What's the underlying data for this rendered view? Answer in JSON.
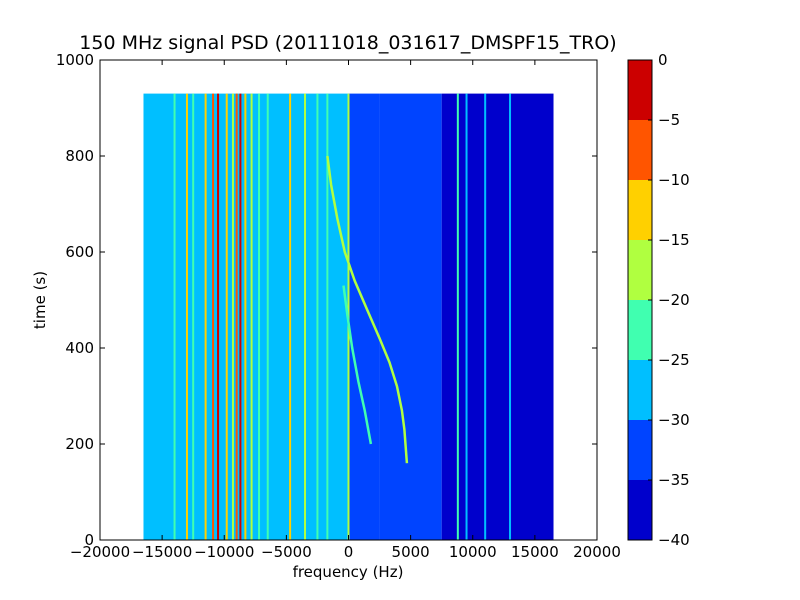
{
  "chart_data": {
    "type": "heatmap",
    "title": "150 MHz signal PSD (20111018_031617_DMSPF15_TRO)",
    "xlabel": "frequency (Hz)",
    "ylabel": "time (s)",
    "xlim": [
      -20000,
      20000
    ],
    "ylim": [
      0,
      1000
    ],
    "xticks": [
      -20000,
      -15000,
      -10000,
      -5000,
      0,
      5000,
      10000,
      15000,
      20000
    ],
    "xtick_labels": [
      "−20000",
      "−15000",
      "−10000",
      "−5000",
      "0",
      "5000",
      "10000",
      "15000",
      "20000"
    ],
    "yticks": [
      0,
      200,
      400,
      600,
      800,
      1000
    ],
    "ytick_labels": [
      "0",
      "200",
      "400",
      "600",
      "800",
      "1000"
    ],
    "data_extent": {
      "x": [
        -16500,
        16500
      ],
      "y": [
        0,
        930
      ]
    },
    "colorbar": {
      "levels": [
        -40,
        -35,
        -30,
        -25,
        -20,
        -15,
        -10,
        -5,
        0
      ],
      "tick_labels": [
        "−40",
        "−35",
        "−30",
        "−25",
        "−20",
        "−15",
        "−10",
        "−5",
        "0"
      ],
      "colors": [
        "#0000cc",
        "#0044ff",
        "#00bfff",
        "#40ffb0",
        "#b0ff40",
        "#ffd000",
        "#ff5500",
        "#cc0000"
      ]
    },
    "background_regions": [
      {
        "x": [
          -16500,
          0
        ],
        "level": -27.5
      },
      {
        "x": [
          0,
          2500
        ],
        "level": -30
      },
      {
        "x": [
          2500,
          7500
        ],
        "level": -32
      },
      {
        "x": [
          7500,
          16500
        ],
        "level": -35
      }
    ],
    "vertical_lines": [
      {
        "x": -14000,
        "level": -20
      },
      {
        "x": -13000,
        "level": -12.5
      },
      {
        "x": -12500,
        "level": -22.5
      },
      {
        "x": -11500,
        "level": -12.5
      },
      {
        "x": -10900,
        "level": -7.5
      },
      {
        "x": -10500,
        "level": -2.5
      },
      {
        "x": -9800,
        "level": -12.5
      },
      {
        "x": -9300,
        "level": -17.5
      },
      {
        "x": -9000,
        "level": -7.5
      },
      {
        "x": -8700,
        "level": -2.5
      },
      {
        "x": -8300,
        "level": -12.5
      },
      {
        "x": -7800,
        "level": -17.5
      },
      {
        "x": -7200,
        "level": -22.5
      },
      {
        "x": -6500,
        "level": -22.5
      },
      {
        "x": -4700,
        "level": -12.5
      },
      {
        "x": -3500,
        "level": -17.5
      },
      {
        "x": -2500,
        "level": -22.5
      },
      {
        "x": -1700,
        "level": -22.5
      },
      {
        "x": 0,
        "level": -17.5
      },
      {
        "x": 8800,
        "level": -22.5
      },
      {
        "x": 9500,
        "level": -27.5
      },
      {
        "x": 11000,
        "level": -27.5
      },
      {
        "x": 13000,
        "level": -27.5
      }
    ],
    "curves": [
      {
        "name": "",
        "level": -17.5,
        "points": [
          {
            "x": -1700,
            "y": 800
          },
          {
            "x": -1400,
            "y": 740
          },
          {
            "x": -900,
            "y": 670
          },
          {
            "x": -300,
            "y": 600
          },
          {
            "x": 500,
            "y": 540
          },
          {
            "x": 1500,
            "y": 480
          },
          {
            "x": 2500,
            "y": 420
          },
          {
            "x": 3300,
            "y": 370
          },
          {
            "x": 3900,
            "y": 320
          },
          {
            "x": 4300,
            "y": 270
          },
          {
            "x": 4500,
            "y": 230
          },
          {
            "x": 4700,
            "y": 160
          }
        ]
      },
      {
        "name": "",
        "level": -22.5,
        "points": [
          {
            "x": -400,
            "y": 530
          },
          {
            "x": -100,
            "y": 470
          },
          {
            "x": 300,
            "y": 400
          },
          {
            "x": 800,
            "y": 330
          },
          {
            "x": 1300,
            "y": 270
          },
          {
            "x": 1800,
            "y": 200
          }
        ]
      }
    ]
  }
}
